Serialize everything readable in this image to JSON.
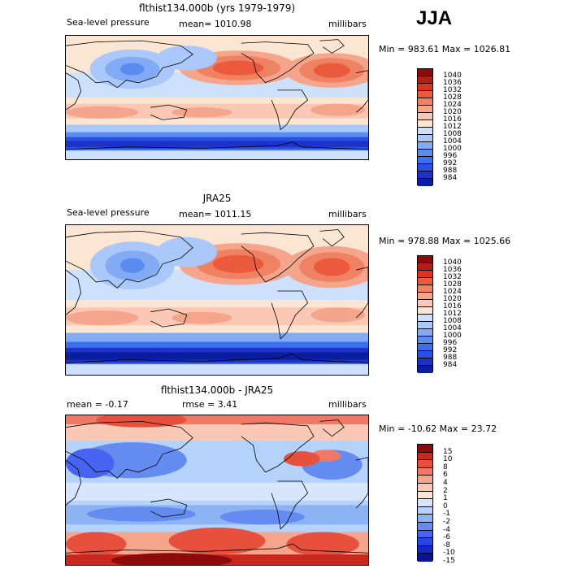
{
  "season": "JJA",
  "colors": {
    "slp": [
      "#0a1ea0",
      "#1e32c8",
      "#2850e6",
      "#3c6ef0",
      "#5a8cf0",
      "#82aaf5",
      "#aac8fa",
      "#cde0fc",
      "#fae6d2",
      "#fac8b4",
      "#f5a58c",
      "#f08264",
      "#eb5a3c",
      "#dc321e",
      "#b41e14",
      "#8c0a0a"
    ],
    "diff": [
      "#0a1490",
      "#1428c8",
      "#2846e6",
      "#4664f0",
      "#648cf0",
      "#8cb4f5",
      "#b4d2fa",
      "#d7e6fc",
      "#fae6d2",
      "#fac8b4",
      "#f5a58c",
      "#f07864",
      "#e6503c",
      "#c8281e",
      "#8c0a0a"
    ]
  },
  "panels": [
    {
      "id": "model",
      "title": "flthist134.000b (yrs 1979-1979)",
      "left": "Sea-level pressure",
      "center": "mean= 1010.98",
      "right": "millibars",
      "stats": "Min = 983.61 Max = 1026.81",
      "scale": "slp",
      "labels": [
        "1040",
        "1036",
        "1032",
        "1028",
        "1024",
        "1020",
        "1016",
        "1012",
        "1008",
        "1004",
        "1000",
        "996",
        "992",
        "988",
        "984"
      ]
    },
    {
      "id": "obs",
      "title": "JRA25",
      "left": "Sea-level pressure",
      "center": "mean= 1011.15",
      "right": "millibars",
      "stats": "Min = 978.88 Max = 1025.66",
      "scale": "slp",
      "labels": [
        "1040",
        "1036",
        "1032",
        "1028",
        "1024",
        "1020",
        "1016",
        "1012",
        "1008",
        "1004",
        "1000",
        "996",
        "992",
        "988",
        "984"
      ]
    },
    {
      "id": "diff",
      "title": "flthist134.000b - JRA25",
      "left": "mean =   -0.17",
      "center": "rmse =    3.41",
      "right": "millibars",
      "stats": "Min = -10.62 Max =  23.72",
      "scale": "diff",
      "labels": [
        "15",
        "10",
        "8",
        "6",
        "4",
        "2",
        "1",
        "0",
        "-1",
        "-2",
        "-4",
        "-6",
        "-8",
        "-10",
        "-15"
      ]
    }
  ]
}
